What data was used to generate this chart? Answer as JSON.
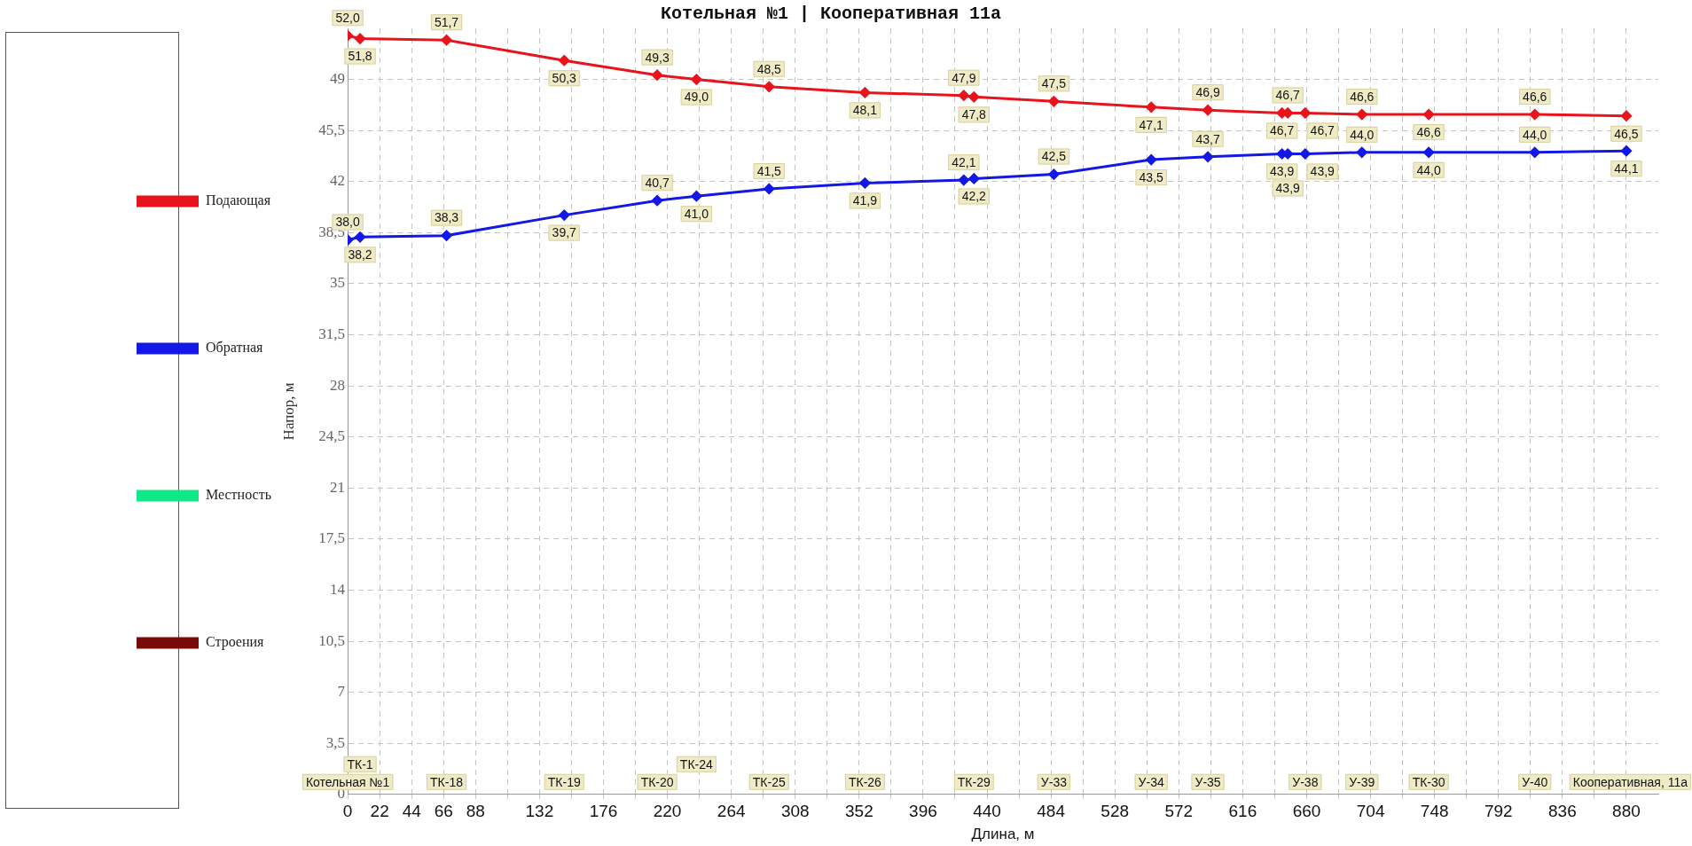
{
  "chart_data": {
    "type": "line",
    "title": "Котельная №1 | Кооперативная 11а",
    "xlabel": "Длина, м",
    "ylabel": "Напор, м",
    "x": [
      0,
      8.5,
      68,
      149,
      213,
      240,
      290,
      356,
      424,
      431,
      486,
      553,
      592,
      643,
      647,
      659,
      698,
      744,
      817,
      880
    ],
    "series": [
      {
        "name": "Подающая",
        "color": "#e8141c",
        "values": [
          52.0,
          51.8,
          51.7,
          50.3,
          49.3,
          49.0,
          48.5,
          48.1,
          47.9,
          47.8,
          47.5,
          47.1,
          46.9,
          46.7,
          46.7,
          46.7,
          46.6,
          46.6,
          46.6,
          46.5
        ],
        "value_labels": [
          "52,0",
          "51,8",
          "51,7",
          "50,3",
          "49,3",
          "49,0",
          "48,5",
          "48,1",
          "47,9",
          "47,8",
          "47,5",
          "47,1",
          "46,9",
          "46,7",
          "46,7",
          "46,7",
          "46,6",
          "46,6",
          "46,6",
          "46,5"
        ]
      },
      {
        "name": "Обратная",
        "color": "#1418e6",
        "values": [
          38.0,
          38.2,
          38.3,
          39.7,
          40.7,
          41.0,
          41.5,
          41.9,
          42.1,
          42.2,
          42.5,
          43.5,
          43.7,
          43.9,
          43.9,
          43.9,
          44.0,
          44.0,
          44.0,
          44.1
        ],
        "value_labels": [
          "38,0",
          "38,2",
          "38,3",
          "39,7",
          "40,7",
          "41,0",
          "41,5",
          "41,9",
          "42,1",
          "42,2",
          "42,5",
          "43,5",
          "43,7",
          "43,9",
          "43,9",
          "43,9",
          "44,0",
          "44,0",
          "44,0",
          "44,1"
        ]
      },
      {
        "name": "Местность",
        "color": "#10e888",
        "values": [
          null,
          null,
          null,
          null,
          null,
          null,
          null,
          null,
          null,
          null,
          null,
          null,
          null,
          null,
          null,
          null,
          null,
          null,
          null,
          null
        ]
      },
      {
        "name": "Строения",
        "color": "#7a0a0a",
        "values": [
          null,
          null,
          null,
          null,
          null,
          null,
          null,
          null,
          null,
          null,
          null,
          null,
          null,
          null,
          null,
          null,
          null,
          null,
          null,
          null
        ]
      }
    ],
    "xlim": [
      0,
      902
    ],
    "xticks": [
      0,
      22,
      44,
      66,
      88,
      {
        "value": 110,
        "label": null
      },
      132,
      {
        "value": 154,
        "label": null
      },
      176,
      {
        "value": 198,
        "label": null
      },
      220,
      {
        "value": 242,
        "label": null
      },
      264,
      {
        "value": 286,
        "label": null
      },
      308,
      {
        "value": 330,
        "label": null
      },
      352,
      {
        "value": 374,
        "label": null
      },
      396,
      {
        "value": 418,
        "label": null
      },
      440,
      {
        "value": 462,
        "label": null
      },
      484,
      {
        "value": 506,
        "label": null
      },
      528,
      {
        "value": 550,
        "label": null
      },
      572,
      {
        "value": 594,
        "label": null
      },
      616,
      {
        "value": 638,
        "label": null
      },
      660,
      {
        "value": 682,
        "label": null
      },
      704,
      {
        "value": 726,
        "label": null
      },
      748,
      {
        "value": 770,
        "label": null
      },
      792,
      {
        "value": 814,
        "label": null
      },
      836,
      {
        "value": 858,
        "label": null
      },
      880
    ],
    "ylim": [
      0,
      52.5
    ],
    "yticks": [
      0,
      {
        "value": 3.5,
        "label": "3,5"
      },
      7,
      {
        "value": 10.5,
        "label": "10,5"
      },
      14,
      {
        "value": 17.5,
        "label": "17,5"
      },
      21,
      {
        "value": 24.5,
        "label": "24,5"
      },
      28,
      {
        "value": 31.5,
        "label": "31,5"
      },
      35,
      {
        "value": 38.5,
        "label": "38,5"
      },
      42,
      {
        "value": 45.5,
        "label": "45,5"
      },
      49
    ],
    "annotations": [
      "Котельная №1",
      {
        "text": "ТК-1",
        "x": 8.5
      },
      {
        "text": "ТК-18",
        "x": 68
      },
      {
        "text": "ТК-19",
        "x": 149
      },
      {
        "text": "ТК-20",
        "x": 213
      },
      {
        "text": "ТК-24",
        "x": 240
      },
      {
        "text": "ТК-25",
        "x": 290
      },
      {
        "text": "ТК-26",
        "x": 356
      },
      {
        "text": "ТК-29",
        "x": 431
      },
      {
        "text": "У-33",
        "x": 486
      },
      {
        "text": "У-34",
        "x": 553
      },
      {
        "text": "У-35",
        "x": 592
      },
      {
        "text": "У-38",
        "x": 659
      },
      {
        "text": "У-39",
        "x": 698
      },
      {
        "text": "ТК-30",
        "x": 744
      },
      {
        "text": "У-40",
        "x": 817
      },
      "Кооперативная, 11а"
    ],
    "grid": true,
    "legend": "left",
    "marker": "diamond",
    "line_style": "solid"
  }
}
